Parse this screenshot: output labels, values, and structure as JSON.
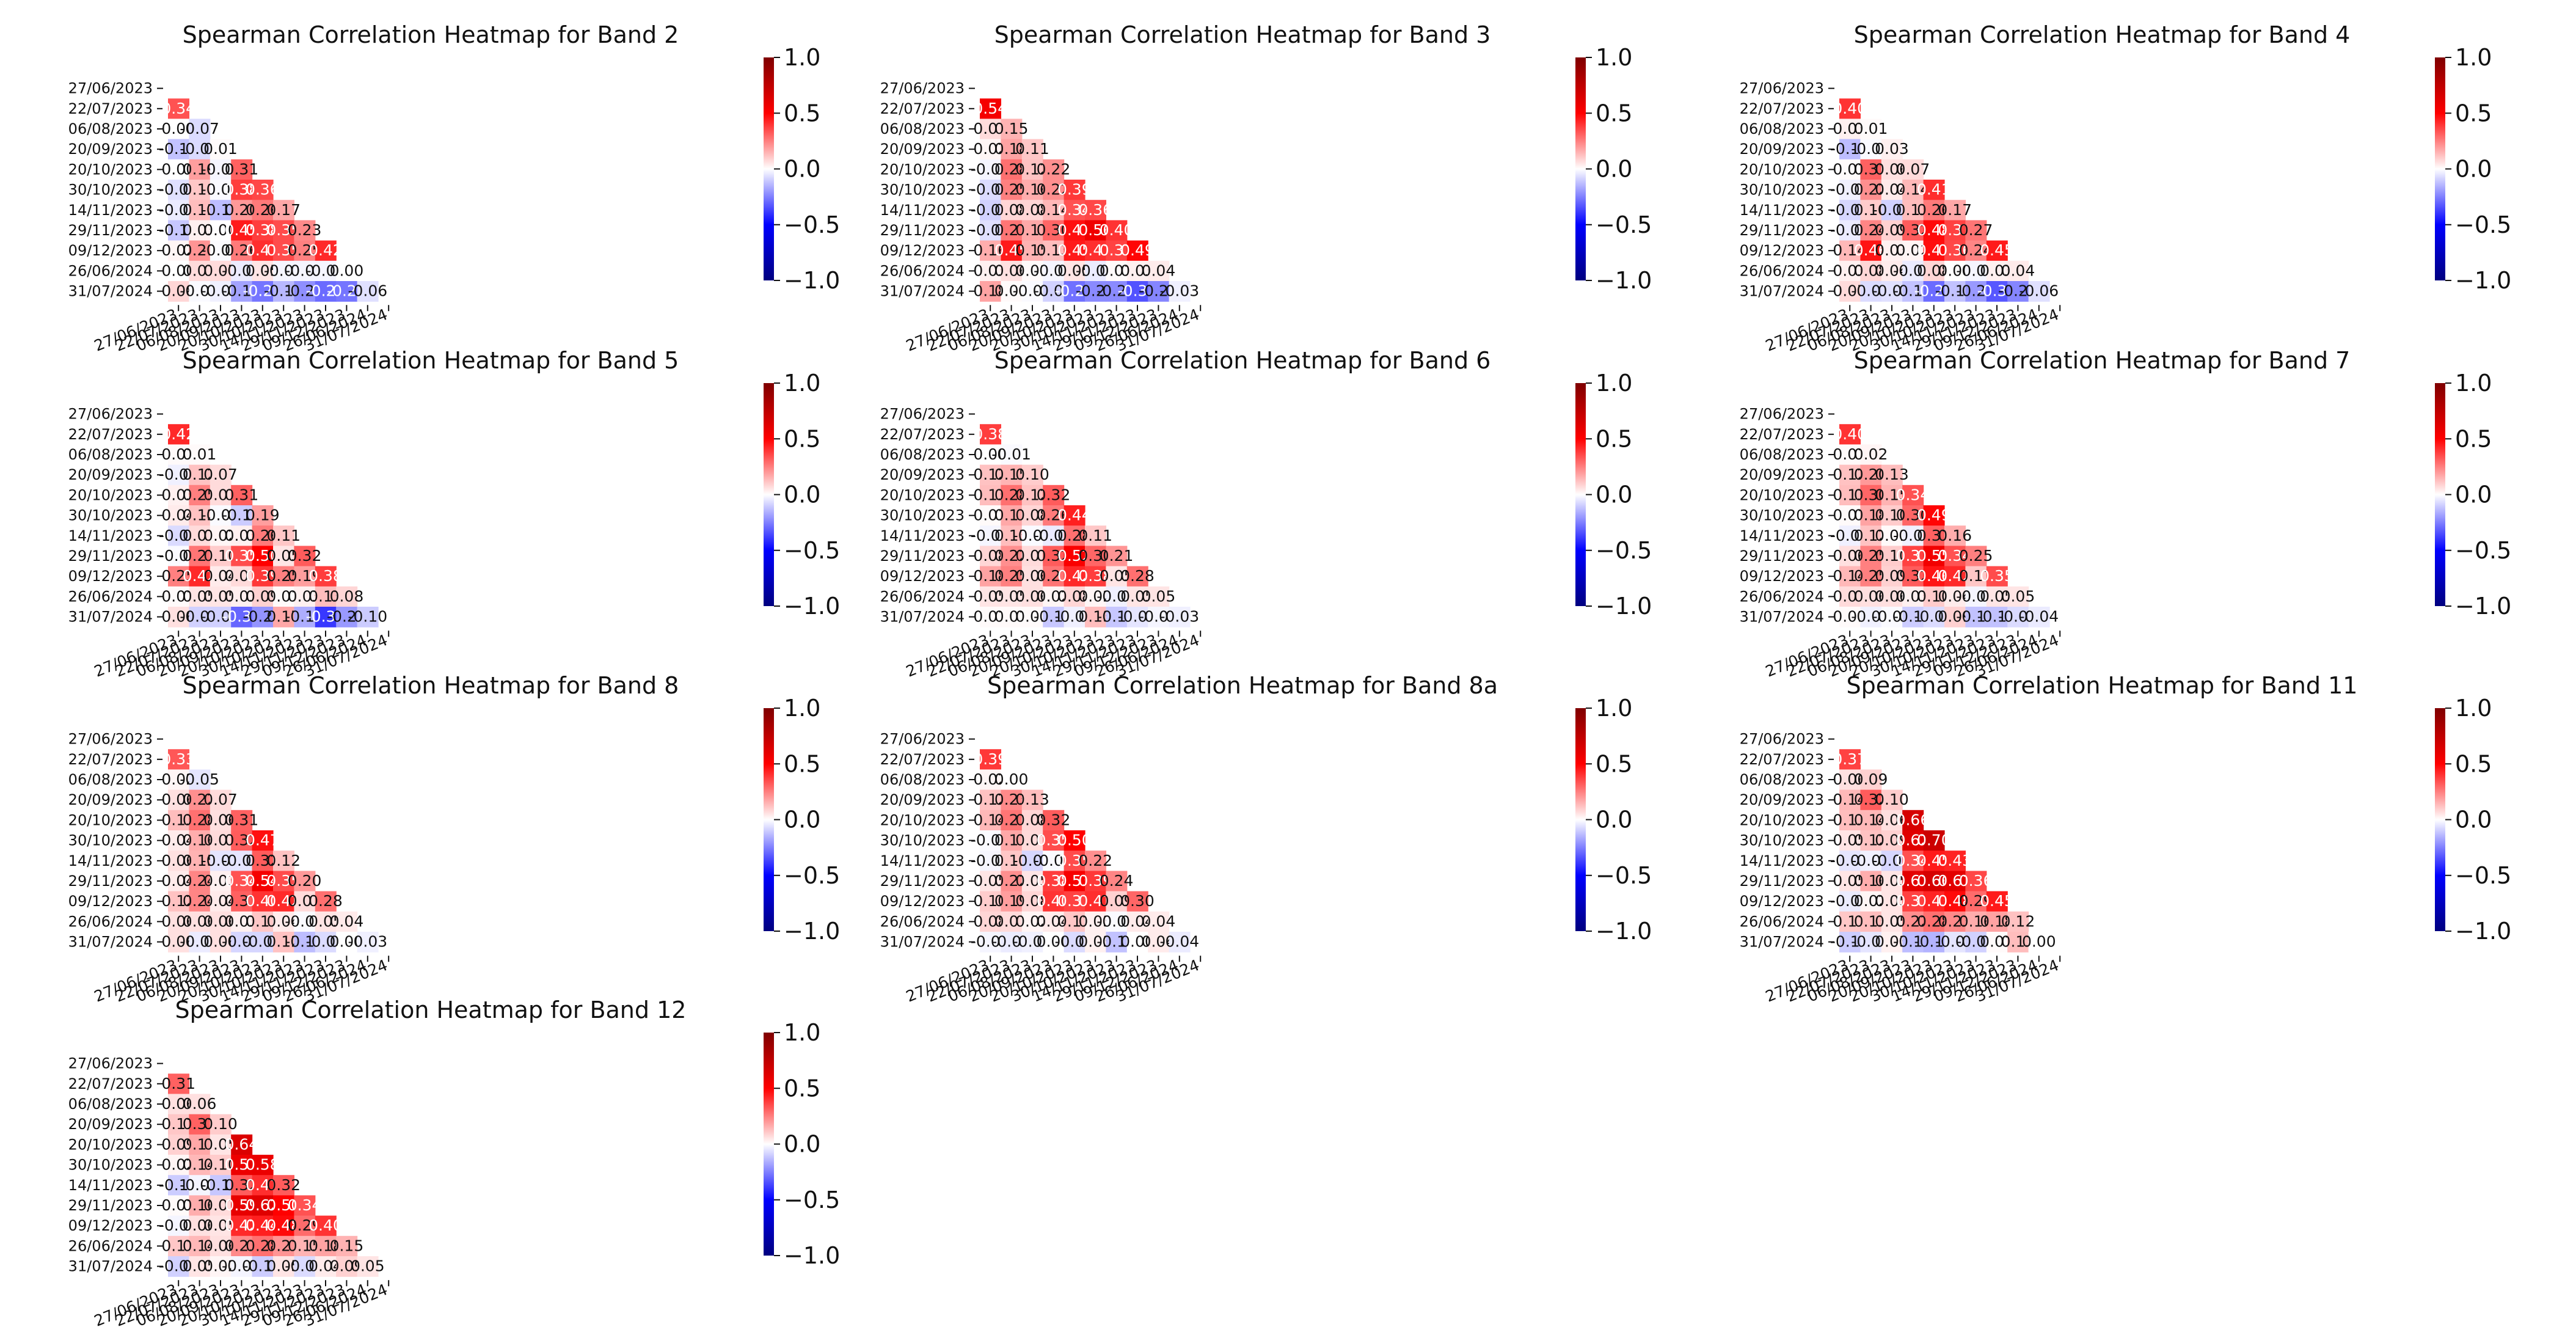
{
  "colormap": {
    "low": "#00007f",
    "mid": "#ffffff",
    "high": "#7f0000",
    "low_mid": "#0000ff",
    "high_mid": "#ff0000"
  },
  "chart_data": [
    {
      "type": "heatmap",
      "title": "Spearman Correlation Heatmap for Band 2",
      "labels": [
        "27/06/2023",
        "22/07/2023",
        "06/08/2023",
        "20/09/2023",
        "20/10/2023",
        "30/10/2023",
        "14/11/2023",
        "29/11/2023",
        "09/12/2023",
        "26/06/2024",
        "31/07/2024"
      ],
      "rows": [
        [],
        [
          0.34
        ],
        [
          -0.0,
          -0.07
        ],
        [
          -0.12,
          -0.07,
          0.01
        ],
        [
          -0.0,
          0.19,
          -0.02,
          0.31
        ],
        [
          -0.06,
          0.11,
          -0.01,
          0.38,
          0.36
        ],
        [
          -0.04,
          0.13,
          -0.13,
          0.2,
          0.26,
          0.17
        ],
        [
          -0.11,
          0.03,
          0.0,
          0.45,
          0.38,
          0.35,
          0.23
        ],
        [
          0.02,
          0.21,
          -0.01,
          0.26,
          0.41,
          0.35,
          0.25,
          0.42
        ],
        [
          0.0,
          0.07,
          0.07,
          -0.04,
          0.05,
          -0.02,
          -0.02,
          -0.02,
          0.0
        ],
        [
          0.08,
          -0.01,
          -0.03,
          -0.18,
          -0.27,
          -0.14,
          -0.22,
          -0.29,
          -0.27,
          -0.06
        ]
      ],
      "colorbar": {
        "vmin": -1.0,
        "vmax": 1.0,
        "ticks": [
          "1.0",
          "0.5",
          "0.0",
          "−0.5",
          "−1.0"
        ]
      }
    },
    {
      "type": "heatmap",
      "title": "Spearman Correlation Heatmap for Band 3",
      "labels": [
        "27/06/2023",
        "22/07/2023",
        "06/08/2023",
        "20/09/2023",
        "20/10/2023",
        "30/10/2023",
        "14/11/2023",
        "29/11/2023",
        "09/12/2023",
        "26/06/2024",
        "31/07/2024"
      ],
      "rows": [
        [],
        [
          0.54
        ],
        [
          0.07,
          0.15
        ],
        [
          0.02,
          0.18,
          0.11
        ],
        [
          -0.02,
          0.28,
          0.12,
          0.22
        ],
        [
          -0.07,
          0.25,
          0.16,
          0.22,
          0.39
        ],
        [
          -0.09,
          0.08,
          0.08,
          0.14,
          0.34,
          0.36
        ],
        [
          -0.06,
          0.27,
          0.17,
          0.3,
          0.47,
          0.56,
          0.4
        ],
        [
          0.16,
          0.45,
          0.15,
          0.13,
          0.45,
          0.41,
          0.37,
          0.49
        ],
        [
          0.03,
          0.06,
          0.01,
          -0.02,
          0.05,
          -0.04,
          0.01,
          0.03,
          0.04
        ],
        [
          0.18,
          0.01,
          -0.01,
          -0.09,
          -0.28,
          -0.23,
          -0.23,
          -0.34,
          -0.24,
          -0.03
        ]
      ],
      "colorbar": {
        "vmin": -1.0,
        "vmax": 1.0,
        "ticks": [
          "1.0",
          "0.5",
          "0.0",
          "−0.5",
          "−1.0"
        ]
      }
    },
    {
      "type": "heatmap",
      "title": "Spearman Correlation Heatmap for Band 4",
      "labels": [
        "27/06/2023",
        "22/07/2023",
        "06/08/2023",
        "20/09/2023",
        "20/10/2023",
        "30/10/2023",
        "14/11/2023",
        "29/11/2023",
        "09/12/2023",
        "26/06/2024",
        "31/07/2024"
      ],
      "rows": [
        [],
        [
          0.4
        ],
        [
          0.03,
          0.01
        ],
        [
          -0.13,
          -0.01,
          0.03
        ],
        [
          0.01,
          0.31,
          0.06,
          0.07
        ],
        [
          -0.03,
          0.22,
          0.04,
          0.14,
          0.41
        ],
        [
          -0.08,
          0.1,
          -0.09,
          0.13,
          0.26,
          0.17
        ],
        [
          -0.04,
          0.24,
          0.09,
          0.32,
          0.48,
          0.37,
          0.27
        ],
        [
          0.14,
          0.46,
          0.03,
          0.02,
          0.47,
          0.36,
          0.24,
          0.45
        ],
        [
          0.03,
          0.08,
          0.04,
          -0.04,
          0.08,
          0.0,
          -0.02,
          0.03,
          0.04
        ],
        [
          0.07,
          -0.07,
          -0.06,
          -0.12,
          -0.29,
          -0.12,
          -0.2,
          -0.33,
          -0.24,
          -0.06
        ]
      ],
      "colorbar": {
        "vmin": -1.0,
        "vmax": 1.0,
        "ticks": [
          "1.0",
          "0.5",
          "0.0",
          "−0.5",
          "−1.0"
        ]
      }
    },
    {
      "type": "heatmap",
      "title": "Spearman Correlation Heatmap for Band 5",
      "labels": [
        "27/06/2023",
        "22/07/2023",
        "06/08/2023",
        "20/09/2023",
        "20/10/2023",
        "30/10/2023",
        "14/11/2023",
        "29/11/2023",
        "09/12/2023",
        "26/06/2024",
        "31/07/2024"
      ],
      "rows": [
        [],
        [
          0.42
        ],
        [
          0.01,
          0.01
        ],
        [
          -0.03,
          0.12,
          0.07
        ],
        [
          0.03,
          0.25,
          0.07,
          0.31
        ],
        [
          0.04,
          0.12,
          -0.01,
          -0.1,
          0.19
        ],
        [
          -0.07,
          0.07,
          0.02,
          0.03,
          0.26,
          0.11
        ],
        [
          -0.01,
          0.27,
          0.1,
          0.35,
          0.5,
          0.05,
          0.32
        ],
        [
          0.25,
          0.42,
          0.04,
          0.07,
          0.39,
          0.25,
          0.19,
          0.38
        ],
        [
          0.01,
          0.05,
          0.05,
          0.03,
          0.09,
          0.01,
          0.03,
          0.13,
          0.08
        ],
        [
          0.06,
          -0.09,
          -0.09,
          -0.3,
          -0.21,
          0.17,
          -0.16,
          -0.39,
          -0.2,
          -0.1
        ]
      ],
      "colorbar": {
        "vmin": -1.0,
        "vmax": 1.0,
        "ticks": [
          "1.0",
          "0.5",
          "0.0",
          "−0.5",
          "−1.0"
        ]
      }
    },
    {
      "type": "heatmap",
      "title": "Spearman Correlation Heatmap for Band 6",
      "labels": [
        "27/06/2023",
        "22/07/2023",
        "06/08/2023",
        "20/09/2023",
        "20/10/2023",
        "30/10/2023",
        "14/11/2023",
        "29/11/2023",
        "09/12/2023",
        "26/06/2024",
        "31/07/2024"
      ],
      "rows": [
        [],
        [
          0.38
        ],
        [
          -0.0,
          -0.01
        ],
        [
          0.12,
          0.15,
          0.1
        ],
        [
          0.13,
          0.28,
          0.12,
          0.32
        ],
        [
          0.01,
          0.17,
          0.08,
          0.26,
          0.44
        ],
        [
          -0.02,
          0.13,
          -0.01,
          -0.04,
          0.28,
          0.11
        ],
        [
          0.08,
          0.22,
          0.07,
          0.32,
          0.52,
          0.3,
          0.21
        ],
        [
          0.18,
          0.25,
          0.06,
          0.27,
          0.42,
          0.38,
          0.05,
          0.28
        ],
        [
          0.05,
          0.05,
          0.06,
          0.02,
          0.08,
          0.02,
          -0.03,
          0.05,
          0.05
        ],
        [
          0.01,
          0.01,
          0.01,
          -0.11,
          -0.03,
          0.13,
          -0.11,
          -0.05,
          -0.02,
          -0.03
        ]
      ],
      "colorbar": {
        "vmin": -1.0,
        "vmax": 1.0,
        "ticks": [
          "1.0",
          "0.5",
          "0.0",
          "−0.5",
          "−1.0"
        ]
      }
    },
    {
      "type": "heatmap",
      "title": "Spearman Correlation Heatmap for Band 7",
      "labels": [
        "27/06/2023",
        "22/07/2023",
        "06/08/2023",
        "20/09/2023",
        "20/10/2023",
        "30/10/2023",
        "14/11/2023",
        "29/11/2023",
        "09/12/2023",
        "26/06/2024",
        "31/07/2024"
      ],
      "rows": [
        [],
        [
          0.4
        ],
        [
          0.01,
          0.02
        ],
        [
          0.12,
          0.2,
          0.13
        ],
        [
          0.13,
          0.3,
          0.15,
          0.34
        ],
        [
          0.01,
          0.18,
          0.1,
          0.3,
          0.49
        ],
        [
          -0.03,
          0.12,
          0.01,
          -0.03,
          0.31,
          0.16
        ],
        [
          0.06,
          0.25,
          0.1,
          0.37,
          0.55,
          0.34,
          0.25
        ],
        [
          0.14,
          0.25,
          0.09,
          0.32,
          0.46,
          0.42,
          0.11,
          0.35
        ],
        [
          0.07,
          0.06,
          0.06,
          0.03,
          0.1,
          0.04,
          -0.02,
          0.05,
          0.05
        ],
        [
          0.01,
          -0.03,
          -0.01,
          -0.1,
          -0.07,
          0.09,
          -0.12,
          -0.12,
          -0.07,
          -0.04
        ]
      ],
      "colorbar": {
        "vmin": -1.0,
        "vmax": 1.0,
        "ticks": [
          "1.0",
          "0.5",
          "0.0",
          "−0.5",
          "−1.0"
        ]
      }
    },
    {
      "type": "heatmap",
      "title": "Spearman Correlation Heatmap for Band 8",
      "labels": [
        "27/06/2023",
        "22/07/2023",
        "06/08/2023",
        "20/09/2023",
        "20/10/2023",
        "30/10/2023",
        "14/11/2023",
        "29/11/2023",
        "09/12/2023",
        "26/06/2024",
        "31/07/2024"
      ],
      "rows": [
        [],
        [
          0.33
        ],
        [
          0.02,
          -0.05
        ],
        [
          0.06,
          0.22,
          0.07
        ],
        [
          0.13,
          0.28,
          0.06,
          0.31
        ],
        [
          0.04,
          0.16,
          0.07,
          0.32,
          0.47
        ],
        [
          0.06,
          0.15,
          -0.05,
          -0.05,
          0.32,
          0.12
        ],
        [
          0.04,
          0.24,
          0.03,
          0.34,
          0.54,
          0.35,
          0.2
        ],
        [
          0.12,
          0.24,
          0.04,
          0.31,
          0.4,
          0.42,
          0.07,
          0.28
        ],
        [
          0.06,
          0.06,
          0.06,
          0.03,
          0.11,
          0.04,
          -0.01,
          0.05,
          0.04
        ],
        [
          0.06,
          -0.04,
          0.06,
          -0.08,
          -0.08,
          0.12,
          -0.13,
          -0.07,
          -0.0,
          -0.03
        ]
      ],
      "colorbar": {
        "vmin": -1.0,
        "vmax": 1.0,
        "ticks": [
          "1.0",
          "0.5",
          "0.0",
          "−0.5",
          "−1.0"
        ]
      }
    },
    {
      "type": "heatmap",
      "title": "Spearman Correlation Heatmap for Band 8a",
      "labels": [
        "27/06/2023",
        "22/07/2023",
        "06/08/2023",
        "20/09/2023",
        "20/10/2023",
        "30/10/2023",
        "14/11/2023",
        "29/11/2023",
        "09/12/2023",
        "26/06/2024",
        "31/07/2024"
      ],
      "rows": [
        [],
        [
          0.39
        ],
        [
          0.02,
          0.0
        ],
        [
          0.12,
          0.23,
          0.13
        ],
        [
          0.14,
          0.27,
          0.08,
          0.32
        ],
        [
          -0.01,
          0.17,
          0.07,
          0.35,
          0.5
        ],
        [
          -0.02,
          0.11,
          -0.08,
          -0.01,
          0.35,
          0.22
        ],
        [
          0.05,
          0.22,
          0.05,
          0.38,
          0.53,
          0.39,
          0.24
        ],
        [
          0.1,
          0.19,
          0.08,
          0.4,
          0.37,
          0.41,
          0.09,
          0.3
        ],
        [
          0.08,
          0.07,
          0.02,
          0.04,
          0.11,
          0.03,
          -0.01,
          0.04,
          0.04
        ],
        [
          -0.02,
          -0.04,
          -0.03,
          -0.0,
          -0.07,
          0.03,
          -0.12,
          -0.0,
          0.04,
          -0.04
        ]
      ],
      "colorbar": {
        "vmin": -1.0,
        "vmax": 1.0,
        "ticks": [
          "1.0",
          "0.5",
          "0.0",
          "−0.5",
          "−1.0"
        ]
      }
    },
    {
      "type": "heatmap",
      "title": "Spearman Correlation Heatmap for Band 11",
      "labels": [
        "27/06/2023",
        "22/07/2023",
        "06/08/2023",
        "20/09/2023",
        "20/10/2023",
        "30/10/2023",
        "14/11/2023",
        "29/11/2023",
        "09/12/2023",
        "26/06/2024",
        "31/07/2024"
      ],
      "rows": [
        [],
        [
          0.37
        ],
        [
          0.06,
          0.09
        ],
        [
          0.14,
          0.32,
          0.1
        ],
        [
          0.13,
          0.14,
          0.06,
          0.66
        ],
        [
          0.05,
          0.12,
          0.09,
          0.62,
          0.7
        ],
        [
          -0.05,
          -0.03,
          -0.08,
          0.34,
          0.45,
          0.43
        ],
        [
          0.05,
          0.16,
          0.05,
          0.61,
          0.66,
          0.61,
          0.36
        ],
        [
          -0.04,
          0.02,
          0.05,
          0.37,
          0.43,
          0.48,
          0.29,
          0.45
        ],
        [
          0.11,
          0.13,
          0.05,
          0.22,
          0.28,
          0.23,
          0.16,
          0.18,
          0.12
        ],
        [
          -0.1,
          -0.05,
          0.03,
          -0.13,
          -0.15,
          -0.05,
          -0.09,
          0.01,
          0.13,
          -0.0
        ]
      ],
      "colorbar": {
        "vmin": -1.0,
        "vmax": 1.0,
        "ticks": [
          "1.0",
          "0.5",
          "0.0",
          "−0.5",
          "−1.0"
        ]
      }
    },
    {
      "type": "heatmap",
      "title": "Spearman Correlation Heatmap for Band 12",
      "labels": [
        "27/06/2023",
        "22/07/2023",
        "06/08/2023",
        "20/09/2023",
        "20/10/2023",
        "30/10/2023",
        "14/11/2023",
        "29/11/2023",
        "09/12/2023",
        "26/06/2024",
        "31/07/2024"
      ],
      "rows": [
        [],
        [
          0.31
        ],
        [
          0.06,
          0.06
        ],
        [
          0.11,
          0.31,
          0.1
        ],
        [
          0.09,
          0.17,
          0.05,
          0.64
        ],
        [
          0.02,
          0.14,
          0.1,
          0.57,
          0.58
        ],
        [
          -0.1,
          -0.02,
          -0.11,
          0.32,
          0.41,
          0.32
        ],
        [
          0.01,
          0.16,
          0.07,
          0.59,
          0.62,
          0.5,
          0.34
        ],
        [
          -0.02,
          0.06,
          0.05,
          0.42,
          0.44,
          0.48,
          0.29,
          0.4
        ],
        [
          0.11,
          0.14,
          0.06,
          0.23,
          0.28,
          0.21,
          0.15,
          0.18,
          0.15
        ],
        [
          -0.09,
          0.05,
          0.02,
          -0.02,
          -0.1,
          0.05,
          -0.07,
          0.04,
          0.09,
          0.05
        ]
      ],
      "colorbar": {
        "vmin": -1.0,
        "vmax": 1.0,
        "ticks": [
          "1.0",
          "0.5",
          "0.0",
          "−0.5",
          "−1.0"
        ]
      }
    }
  ]
}
